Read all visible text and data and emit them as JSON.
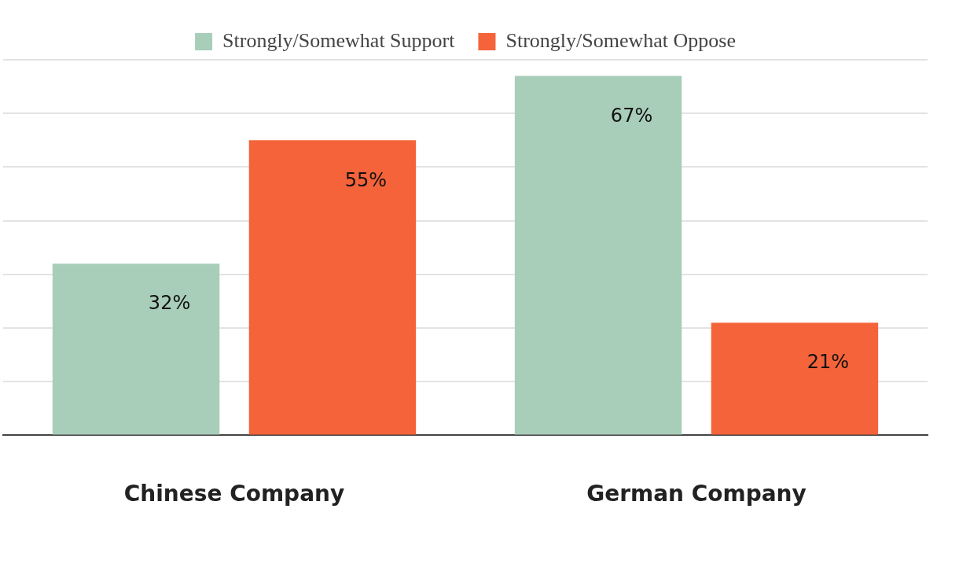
{
  "chart_data": {
    "type": "bar",
    "categories": [
      "Chinese Company",
      "German Company"
    ],
    "series": [
      {
        "name": "Strongly/Somewhat Support",
        "color": "#a8cdb9",
        "values": [
          32,
          67
        ],
        "value_labels": [
          "32%",
          "67%"
        ]
      },
      {
        "name": "Strongly/Somewhat Oppose",
        "color": "#f5633a",
        "values": [
          55,
          21
        ],
        "value_labels": [
          "55%",
          "21%"
        ]
      }
    ],
    "grid": "y",
    "legend": "top",
    "tick_labels": "x"
  }
}
